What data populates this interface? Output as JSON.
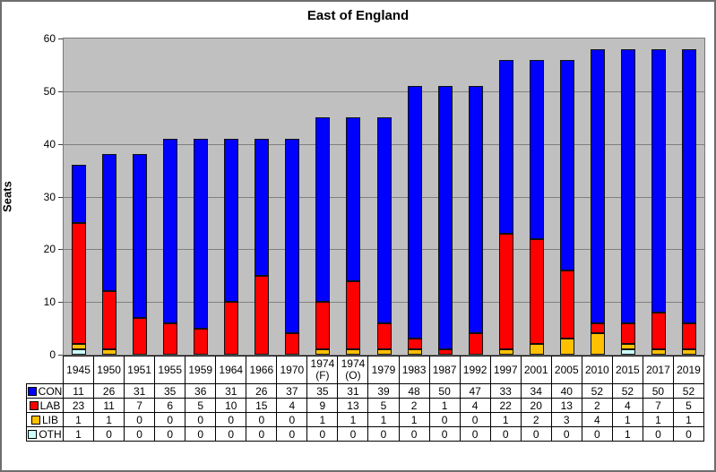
{
  "title": "East of England",
  "ylabel": "Seats",
  "chart_data": {
    "type": "bar",
    "stacked": true,
    "title": "East of England",
    "xlabel": "",
    "ylabel": "Seats",
    "ylim": [
      0,
      60
    ],
    "yticks": [
      0,
      10,
      20,
      30,
      40,
      50,
      60
    ],
    "grid": true,
    "plot_bg_color": "#c0c0c0",
    "gridline_color": "#808080",
    "legend_position": "table-left",
    "categories": [
      "1945",
      "1950",
      "1951",
      "1955",
      "1959",
      "1964",
      "1966",
      "1970",
      "1974 (F)",
      "1974 (O)",
      "1979",
      "1983",
      "1987",
      "1992",
      "1997",
      "2001",
      "2005",
      "2010",
      "2015",
      "2017",
      "2019"
    ],
    "series": [
      {
        "name": "CON",
        "color": "#0000ff",
        "values": [
          11,
          26,
          31,
          35,
          36,
          31,
          26,
          37,
          35,
          31,
          39,
          48,
          50,
          47,
          33,
          34,
          40,
          52,
          52,
          50,
          52
        ]
      },
      {
        "name": "LAB",
        "color": "#ff0000",
        "values": [
          23,
          11,
          7,
          6,
          5,
          10,
          15,
          4,
          9,
          13,
          5,
          2,
          1,
          4,
          22,
          20,
          13,
          2,
          4,
          7,
          5
        ]
      },
      {
        "name": "LIB",
        "color": "#ffc000",
        "values": [
          1,
          1,
          0,
          0,
          0,
          0,
          0,
          0,
          1,
          1,
          1,
          1,
          0,
          0,
          1,
          2,
          3,
          4,
          1,
          1,
          1
        ]
      },
      {
        "name": "OTH",
        "color": "#ccffff",
        "values": [
          1,
          0,
          0,
          0,
          0,
          0,
          0,
          0,
          0,
          0,
          0,
          0,
          0,
          0,
          0,
          0,
          0,
          0,
          1,
          0,
          0
        ]
      }
    ],
    "stack_order_bottom_to_top": [
      "OTH",
      "LIB",
      "LAB",
      "CON"
    ]
  }
}
